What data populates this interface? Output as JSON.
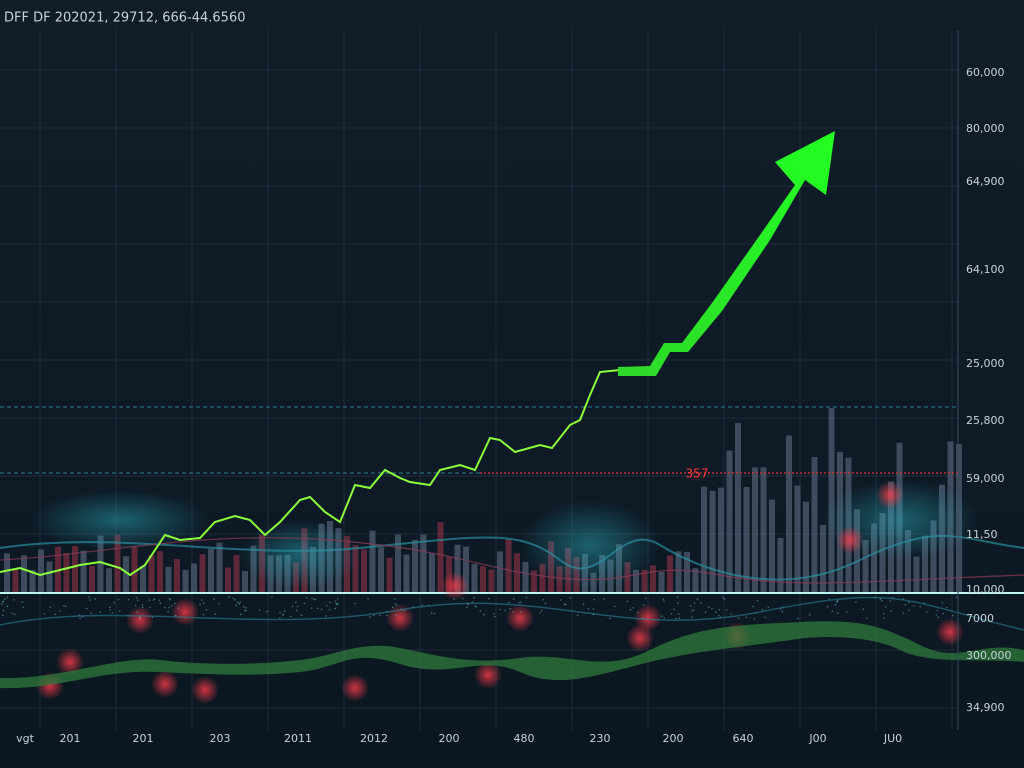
{
  "header": "DFF DF 202021, 29712, 666-44.6560",
  "y_axis_labels": [
    "60,000",
    "80,000",
    "64,900",
    "64,100",
    "25,000",
    "25,800",
    "59,000",
    "11,50",
    "10,000",
    "7000",
    "300,000",
    "34,900"
  ],
  "x_axis_labels": [
    "vgt",
    "201",
    "201",
    "203",
    "2011",
    "2012",
    "200",
    "480",
    "230",
    "200",
    "640",
    "J00",
    "JU0"
  ],
  "annotation": "357"
}
